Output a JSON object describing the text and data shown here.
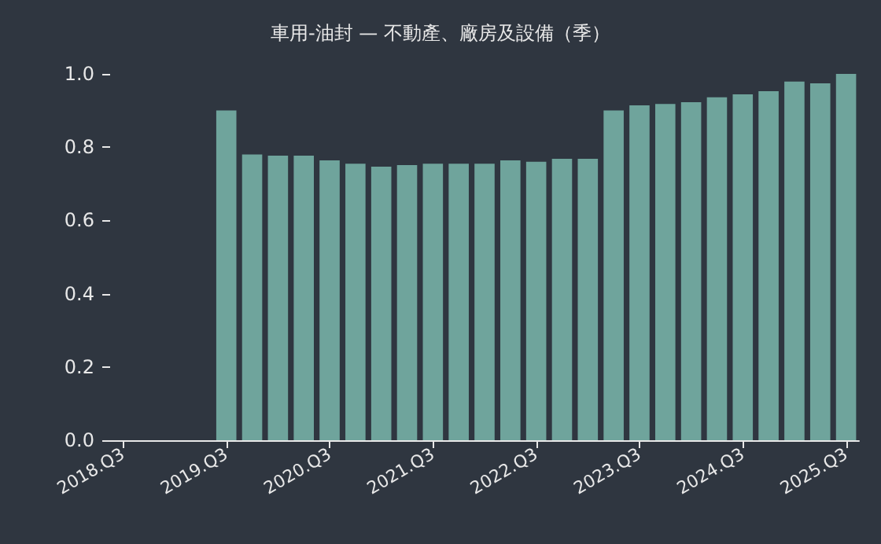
{
  "chart_data": {
    "type": "bar",
    "title": "車用-油封 — 不動產、廠房及設備（季）",
    "categories": [
      "2018.Q3",
      null,
      null,
      null,
      "2019.Q3",
      null,
      null,
      null,
      "2020.Q3",
      null,
      null,
      null,
      "2021.Q3",
      null,
      null,
      null,
      "2022.Q3",
      null,
      null,
      null,
      "2023.Q3",
      null,
      null,
      null,
      "2024.Q3",
      null,
      null,
      null,
      "2025.Q3"
    ],
    "values": [
      null,
      null,
      null,
      null,
      0.9,
      0.78,
      0.777,
      0.777,
      0.764,
      0.755,
      0.747,
      0.751,
      0.755,
      0.755,
      0.755,
      0.764,
      0.76,
      0.768,
      0.768,
      0.9,
      0.914,
      0.918,
      0.923,
      0.936,
      0.944,
      0.953,
      0.979,
      0.974,
      1.0
    ],
    "color": "#6fa49c",
    "ylim": [
      0,
      1
    ],
    "yticks": [
      {
        "value": 0,
        "label": "0.0"
      },
      0.2,
      0.4,
      0.6,
      0.8,
      {
        "value": 1,
        "label": "1.0"
      }
    ],
    "grid": false
  }
}
